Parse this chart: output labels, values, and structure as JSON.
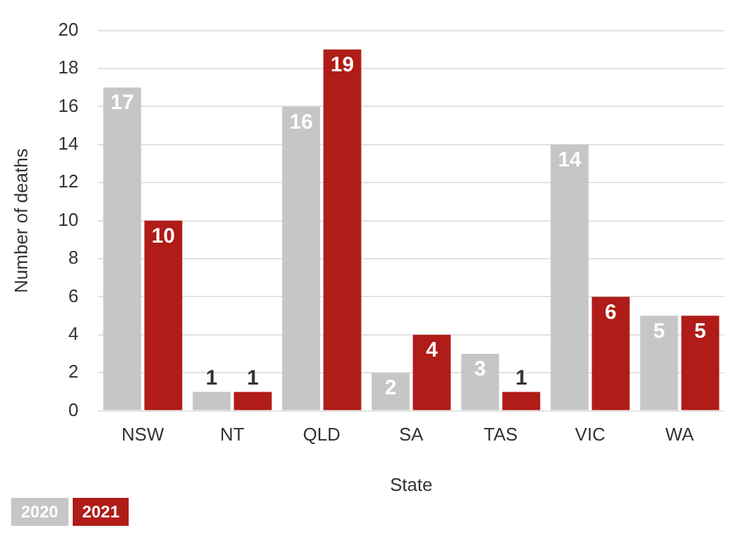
{
  "chart_data": {
    "type": "bar",
    "xlabel": "State",
    "ylabel": "Number of deaths",
    "categories": [
      "NSW",
      "NT",
      "QLD",
      "SA",
      "TAS",
      "VIC",
      "WA"
    ],
    "series": [
      {
        "name": "2020",
        "color": "#c6c6c6",
        "values": [
          17,
          1,
          16,
          2,
          3,
          14,
          5
        ]
      },
      {
        "name": "2021",
        "color": "#b01c17",
        "values": [
          10,
          1,
          19,
          4,
          1,
          6,
          5
        ]
      }
    ],
    "ylim": [
      0,
      20
    ],
    "yticks": [
      0,
      2,
      4,
      6,
      8,
      10,
      12,
      14,
      16,
      18,
      20
    ],
    "grid": "y",
    "legend": "bottom left",
    "data_labels": true
  }
}
